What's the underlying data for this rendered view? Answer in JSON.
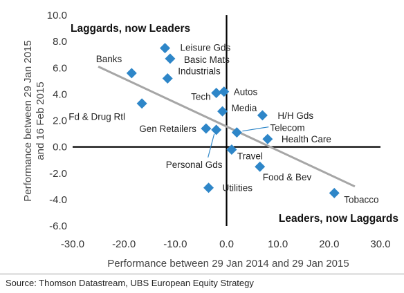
{
  "chart_data": {
    "type": "scatter",
    "xlabel": "Performance between 29 Jan 2014 and 29 Jan 2015",
    "ylabel_lines": [
      "Performance between 29 Jan 2015",
      "and 16 Feb 2015"
    ],
    "xlim": [
      -30,
      30
    ],
    "ylim": [
      -6,
      10
    ],
    "x_ticks": [
      "-30.0",
      "-20.0",
      "-10.0",
      "0.0",
      "10.0",
      "20.0",
      "30.0"
    ],
    "y_ticks": [
      "10.0",
      "8.0",
      "6.0",
      "4.0",
      "2.0",
      "0.0",
      "-2.0",
      "-4.0",
      "-6.0"
    ],
    "grid": false,
    "marker_color": "#2e86c8",
    "trendline_color": "#a6a6a6",
    "points": [
      {
        "label": "Banks",
        "x": -18.5,
        "y": 5.6
      },
      {
        "label": "Leisure Gds",
        "x": -12.0,
        "y": 7.5
      },
      {
        "label": "Basic Mats",
        "x": -11.0,
        "y": 6.7
      },
      {
        "label": "Industrials",
        "x": -11.5,
        "y": 5.2
      },
      {
        "label": "Fd & Drug Rtl",
        "x": -16.5,
        "y": 3.3
      },
      {
        "label": "Tech",
        "x": -2.0,
        "y": 4.1
      },
      {
        "label": "Autos",
        "x": -0.5,
        "y": 4.2
      },
      {
        "label": "Media",
        "x": -0.8,
        "y": 2.7
      },
      {
        "label": "Gen Retailers",
        "x": -4.0,
        "y": 1.4
      },
      {
        "label": "Personal Gds",
        "x": -2.0,
        "y": 1.3
      },
      {
        "label": "Travel",
        "x": 1.0,
        "y": -0.2
      },
      {
        "label": "Telecom",
        "x": 2.0,
        "y": 1.1
      },
      {
        "label": "H/H Gds",
        "x": 7.0,
        "y": 2.4
      },
      {
        "label": "Health Care",
        "x": 8.0,
        "y": 0.6
      },
      {
        "label": "Food & Bev",
        "x": 6.5,
        "y": -1.5
      },
      {
        "label": "Utilities",
        "x": -3.5,
        "y": -3.1
      },
      {
        "label": "Tobacco",
        "x": 21.0,
        "y": -3.5
      }
    ],
    "trendline": {
      "x": [
        -25,
        25
      ],
      "y": [
        6.1,
        -3.0
      ]
    },
    "annotations": [
      "Laggards, now Leaders",
      "Leaders, now Laggards"
    ]
  },
  "source": "Source:  Thomson Datastream, UBS European Equity Strategy"
}
